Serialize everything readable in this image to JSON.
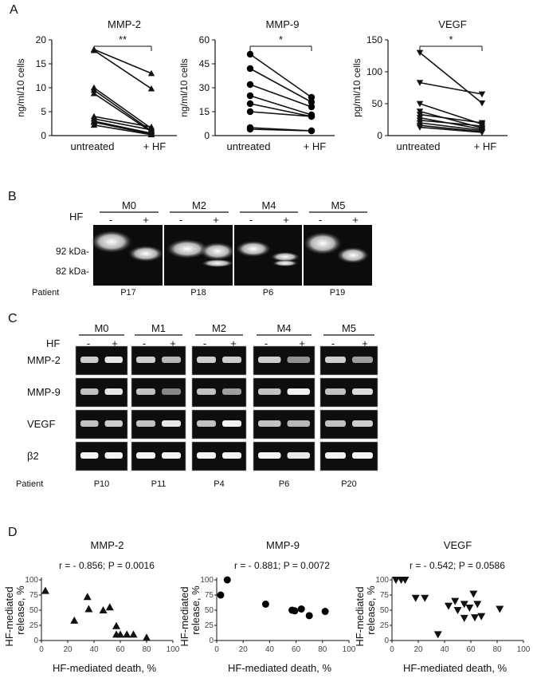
{
  "panels": {
    "A": "A",
    "B": "B",
    "C": "C",
    "D": "D"
  },
  "groups": {
    "untreated": "untreated",
    "hf": "+ HF"
  },
  "panelA": [
    {
      "title": "MMP-2",
      "ylabel": "ng/ml/10^6 cells",
      "ylim": [
        0,
        20
      ],
      "yticks": [
        "0",
        "5",
        "10",
        "15",
        "20"
      ],
      "sig": "**",
      "pairs": [
        [
          18,
          13
        ],
        [
          17.8,
          9.8
        ],
        [
          10,
          1.5
        ],
        [
          9.5,
          1.0
        ],
        [
          8.8,
          0.8
        ],
        [
          4.0,
          1.8
        ],
        [
          3.5,
          1.2
        ],
        [
          3.0,
          0.5
        ],
        [
          2.8,
          0.3
        ],
        [
          2.2,
          0.2
        ]
      ]
    },
    {
      "title": "MMP-9",
      "ylabel": "ng/ml/10^6 cells",
      "ylim": [
        0,
        60
      ],
      "yticks": [
        "0",
        "15",
        "30",
        "45",
        "60"
      ],
      "sig": "*",
      "pairs": [
        [
          51,
          24
        ],
        [
          42,
          21
        ],
        [
          32,
          18
        ],
        [
          25,
          13
        ],
        [
          20,
          12
        ],
        [
          15,
          12
        ],
        [
          5,
          3
        ],
        [
          4,
          3
        ]
      ]
    },
    {
      "title": "VEGF",
      "ylabel": "pg/ml/10^6 cells",
      "ylim": [
        0,
        150
      ],
      "yticks": [
        "0",
        "50",
        "100",
        "150"
      ],
      "sig": "*",
      "pairs": [
        [
          130,
          51
        ],
        [
          83,
          65
        ],
        [
          50,
          18
        ],
        [
          38,
          12
        ],
        [
          33,
          20
        ],
        [
          28,
          10
        ],
        [
          24,
          15
        ],
        [
          20,
          8
        ],
        [
          16,
          6
        ],
        [
          13,
          5
        ]
      ]
    }
  ],
  "panelB": {
    "hf_label": "HF",
    "minus": "-",
    "plus": "+",
    "patient_label": "Patient",
    "kda": [
      "92 kDa-",
      "82 kDa-"
    ],
    "groups": [
      {
        "label": "M0",
        "patient": "P17"
      },
      {
        "label": "M2",
        "patient": "P18"
      },
      {
        "label": "M4",
        "patient": "P6"
      },
      {
        "label": "M5",
        "patient": "P19"
      }
    ]
  },
  "panelC": {
    "hf_label": "HF",
    "patient_label": "Patient",
    "rows": [
      "MMP-2",
      "MMP-9",
      "VEGF",
      "β2"
    ],
    "groups": [
      {
        "label": "M0",
        "patient": "P10"
      },
      {
        "label": "M1",
        "patient": "P11"
      },
      {
        "label": "M2",
        "patient": "P4"
      },
      {
        "label": "M4",
        "patient": "P6"
      },
      {
        "label": "M5",
        "patient": "P20"
      }
    ]
  },
  "panelD": [
    {
      "title": "MMP-2",
      "stat": "r = - 0.856; P = 0.0016",
      "marker": "triangle-up",
      "points": [
        [
          3,
          82
        ],
        [
          25,
          33
        ],
        [
          35,
          72
        ],
        [
          36,
          52
        ],
        [
          47,
          50
        ],
        [
          52,
          55
        ],
        [
          57,
          24
        ],
        [
          57,
          10
        ],
        [
          60,
          10
        ],
        [
          65,
          10
        ],
        [
          70,
          10
        ],
        [
          80,
          5
        ]
      ]
    },
    {
      "title": "MMP-9",
      "stat": "r = - 0.881; P = 0.0072",
      "marker": "circle",
      "points": [
        [
          3,
          75
        ],
        [
          8,
          100
        ],
        [
          37,
          60
        ],
        [
          57,
          50
        ],
        [
          59,
          49
        ],
        [
          64,
          52
        ],
        [
          70,
          41
        ],
        [
          82,
          48
        ]
      ]
    },
    {
      "title": "VEGF",
      "stat": "r = - 0.542; P = 0.0586",
      "marker": "triangle-down",
      "points": [
        [
          3,
          100
        ],
        [
          7,
          100
        ],
        [
          10,
          100
        ],
        [
          18,
          70
        ],
        [
          25,
          70
        ],
        [
          35,
          10
        ],
        [
          43,
          57
        ],
        [
          48,
          65
        ],
        [
          50,
          50
        ],
        [
          55,
          60
        ],
        [
          55,
          37
        ],
        [
          59,
          54
        ],
        [
          62,
          77
        ],
        [
          63,
          38
        ],
        [
          65,
          60
        ],
        [
          68,
          40
        ],
        [
          82,
          52
        ]
      ]
    }
  ],
  "chart_data": [
    {
      "type": "line",
      "title": "MMP-2",
      "ylabel": "ng/ml/10^6 cells",
      "categories": [
        "untreated",
        "+ HF"
      ],
      "ylim": [
        0,
        20
      ],
      "series": [
        {
          "values": [
            18,
            13
          ]
        },
        {
          "values": [
            17.8,
            9.8
          ]
        },
        {
          "values": [
            10,
            1.5
          ]
        },
        {
          "values": [
            9.5,
            1.0
          ]
        },
        {
          "values": [
            8.8,
            0.8
          ]
        },
        {
          "values": [
            4.0,
            1.8
          ]
        },
        {
          "values": [
            3.5,
            1.2
          ]
        },
        {
          "values": [
            3.0,
            0.5
          ]
        },
        {
          "values": [
            2.8,
            0.3
          ]
        },
        {
          "values": [
            2.2,
            0.2
          ]
        }
      ]
    },
    {
      "type": "line",
      "title": "MMP-9",
      "ylabel": "ng/ml/10^6 cells",
      "categories": [
        "untreated",
        "+ HF"
      ],
      "ylim": [
        0,
        60
      ],
      "series": [
        {
          "values": [
            51,
            24
          ]
        },
        {
          "values": [
            42,
            21
          ]
        },
        {
          "values": [
            32,
            18
          ]
        },
        {
          "values": [
            25,
            13
          ]
        },
        {
          "values": [
            20,
            12
          ]
        },
        {
          "values": [
            15,
            12
          ]
        },
        {
          "values": [
            5,
            3
          ]
        },
        {
          "values": [
            4,
            3
          ]
        }
      ]
    },
    {
      "type": "line",
      "title": "VEGF",
      "ylabel": "pg/ml/10^6 cells",
      "categories": [
        "untreated",
        "+ HF"
      ],
      "ylim": [
        0,
        150
      ],
      "series": [
        {
          "values": [
            130,
            51
          ]
        },
        {
          "values": [
            83,
            65
          ]
        },
        {
          "values": [
            50,
            18
          ]
        },
        {
          "values": [
            38,
            12
          ]
        },
        {
          "values": [
            33,
            20
          ]
        },
        {
          "values": [
            28,
            10
          ]
        },
        {
          "values": [
            24,
            15
          ]
        },
        {
          "values": [
            20,
            8
          ]
        },
        {
          "values": [
            16,
            6
          ]
        },
        {
          "values": [
            13,
            5
          ]
        }
      ]
    },
    {
      "type": "scatter",
      "title": "MMP-2",
      "xlabel": "HF-mediated death, %",
      "ylabel": "HF-mediated release, %",
      "xlim": [
        0,
        100
      ],
      "ylim": [
        0,
        100
      ]
    },
    {
      "type": "scatter",
      "title": "MMP-9",
      "xlabel": "HF-mediated death, %",
      "ylabel": "HF-mediated release, %",
      "xlim": [
        0,
        100
      ],
      "ylim": [
        0,
        100
      ]
    },
    {
      "type": "scatter",
      "title": "VEGF",
      "xlabel": "HF-mediated death, %",
      "ylabel": "HF-mediated release, %",
      "xlim": [
        0,
        100
      ],
      "ylim": [
        0,
        100
      ]
    }
  ],
  "axisD": {
    "xlabel": "HF-mediated death, %",
    "ylabel_line1": "HF-mediated",
    "ylabel_line2": "release, %",
    "xticks": [
      "0",
      "20",
      "40",
      "60",
      "80",
      "100"
    ],
    "yticks": [
      "0",
      "25",
      "50",
      "75",
      "100"
    ]
  }
}
